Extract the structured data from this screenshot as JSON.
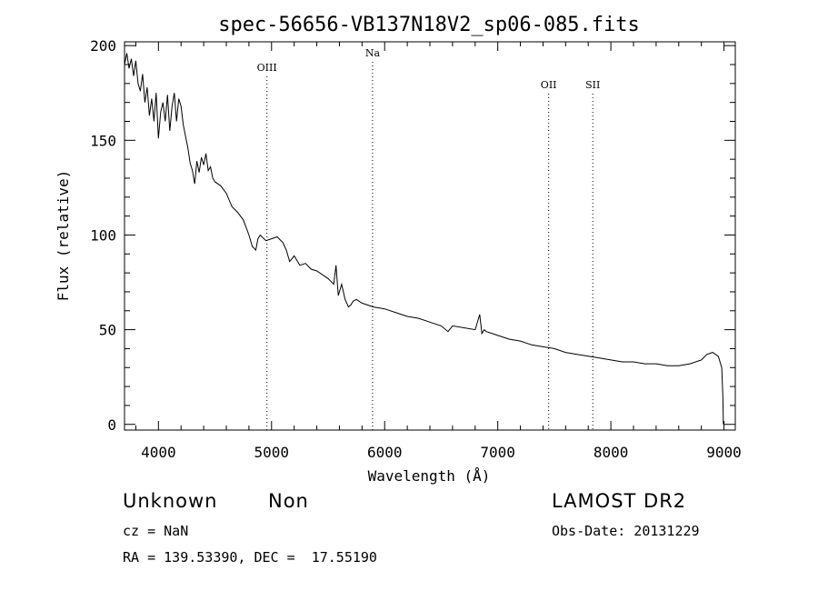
{
  "chart_data": {
    "type": "line",
    "title": "spec-56656-VB137N18V2_sp06-085.fits",
    "xlabel": "Wavelength (Å)",
    "ylabel": "Flux (relative)",
    "xlim": [
      3700,
      9100
    ],
    "ylim": [
      -3,
      202
    ],
    "x_ticks": [
      4000,
      5000,
      6000,
      7000,
      8000,
      9000
    ],
    "y_ticks": [
      0,
      50,
      100,
      150,
      200
    ],
    "grid": false,
    "line_color": "#000000",
    "lines": [
      {
        "label": "OIII",
        "wavelength": 4959
      },
      {
        "label": "Na",
        "wavelength": 5893
      },
      {
        "label": "OII",
        "wavelength": 7450
      },
      {
        "label": "SII",
        "wavelength": 7840
      }
    ],
    "series": [
      {
        "x": [
          3700,
          3720,
          3740,
          3760,
          3780,
          3800,
          3820,
          3840,
          3860,
          3880,
          3900,
          3920,
          3940,
          3960,
          3980,
          4000,
          4020,
          4040,
          4060,
          4080,
          4100,
          4120,
          4140,
          4160,
          4180,
          4200,
          4220,
          4240,
          4260,
          4280,
          4300,
          4320,
          4340,
          4360,
          4380,
          4400,
          4420,
          4440,
          4460,
          4480,
          4500,
          4550,
          4600,
          4650,
          4700,
          4750,
          4800,
          4830,
          4860,
          4880,
          4900,
          4950,
          5000,
          5050,
          5100,
          5130,
          5160,
          5200,
          5250,
          5300,
          5350,
          5400,
          5450,
          5500,
          5550,
          5570,
          5590,
          5620,
          5650,
          5680,
          5700,
          5720,
          5750,
          5800,
          5900,
          6000,
          6100,
          6200,
          6300,
          6400,
          6500,
          6560,
          6600,
          6700,
          6800,
          6840,
          6860,
          6880,
          6900,
          7000,
          7100,
          7200,
          7300,
          7400,
          7500,
          7600,
          7700,
          7800,
          7900,
          8000,
          8100,
          8200,
          8300,
          8400,
          8500,
          8600,
          8700,
          8800,
          8850,
          8900,
          8950,
          8980,
          8990,
          8995
        ],
        "y": [
          190,
          196,
          188,
          193,
          184,
          192,
          180,
          176,
          185,
          170,
          178,
          163,
          172,
          160,
          175,
          151,
          165,
          170,
          160,
          174,
          155,
          168,
          175,
          160,
          172,
          168,
          158,
          152,
          146,
          138,
          134,
          127,
          139,
          133,
          141,
          137,
          143,
          134,
          136,
          130,
          128,
          126,
          122,
          115,
          112,
          108,
          100,
          94,
          92,
          98,
          100,
          97,
          98,
          99,
          96,
          92,
          86,
          89,
          84,
          85,
          82,
          81,
          79,
          77,
          74,
          84,
          68,
          74,
          66,
          62,
          63,
          65,
          66,
          64,
          62,
          61,
          59,
          57,
          56,
          54,
          52,
          49,
          52,
          51,
          50,
          58,
          48,
          50,
          49,
          47,
          45,
          44,
          42,
          41,
          40,
          38,
          37,
          36,
          35,
          34,
          33,
          33,
          32,
          32,
          31,
          31,
          32,
          34,
          37,
          38,
          36,
          30,
          15,
          0
        ]
      }
    ]
  },
  "info": {
    "object_class": "Unknown",
    "subclass": "Non",
    "survey": "LAMOST DR2",
    "redshift": "cz = NaN",
    "obs_date": "Obs-Date: 20131229",
    "coords": "RA = 139.53390, DEC =  17.55190"
  }
}
